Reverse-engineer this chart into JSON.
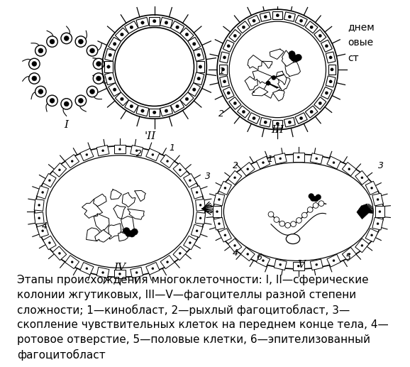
{
  "caption_text": "Этапы происхождения многоклеточности: I, II—сферические\nколонии жгутиковых, III—V—фагоцителлы разной степени\nсложности; 1—кинобласт, 2—рыхлый фагоцитобласт, 3—\nскопление чувствительных клеток на переднем конце тела, 4—\nротовое отверстие, 5—половые клетки, 6—эпителизованный\nфагоцитобласт",
  "partial_text_top_right": [
    "днем",
    "овые",
    "ст"
  ],
  "bg_color": "#ffffff",
  "caption_fontsize": 11.0,
  "label_fontsize": 11
}
